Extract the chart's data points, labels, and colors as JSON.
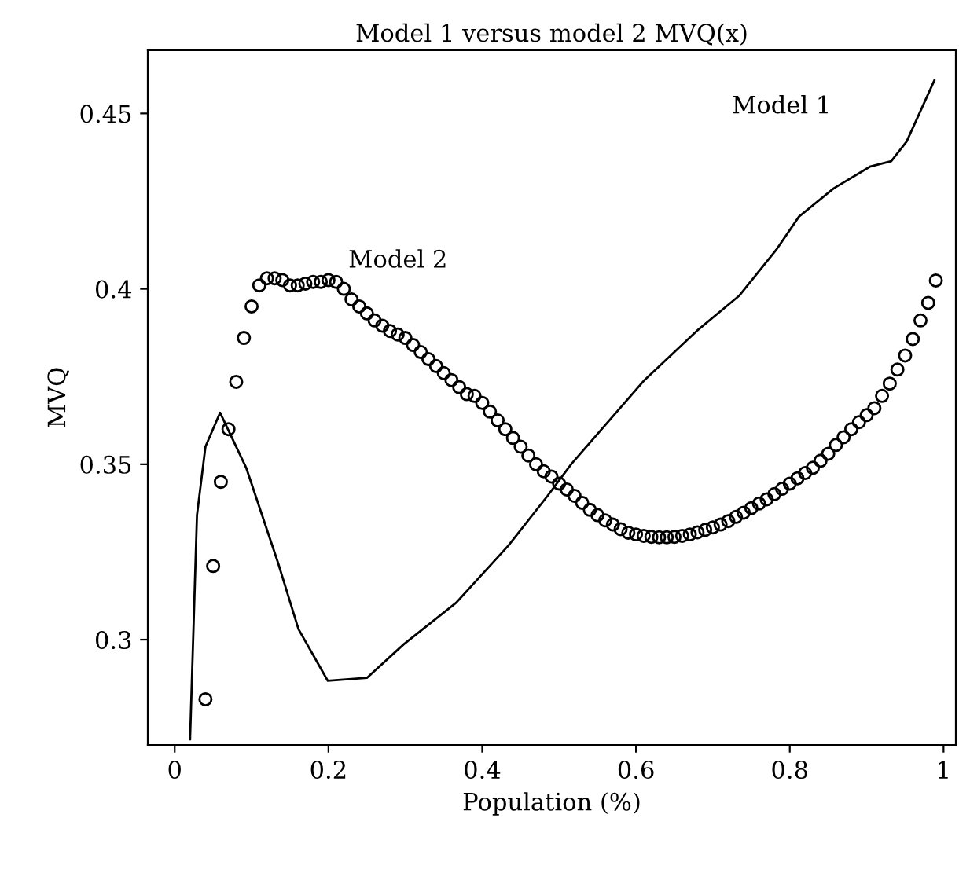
{
  "chart_data": {
    "type": "line",
    "title": "Model 1 versus model 2 MVQ(x)",
    "xlabel": "Population (%)",
    "ylabel": "MVQ",
    "xlim": [
      -0.035,
      1.016
    ],
    "ylim": [
      0.27,
      0.468
    ],
    "xticks": [
      0,
      {
        "value": 0.2,
        "label": "0.2"
      },
      {
        "value": 0.4,
        "label": "0.4"
      },
      {
        "value": 0.6,
        "label": "0.6"
      },
      {
        "value": 0.8,
        "label": "0.8"
      },
      1
    ],
    "yticks": [
      {
        "value": 0.3,
        "label": "0.3"
      },
      0.35,
      {
        "value": 0.4,
        "label": "0.4"
      },
      0.45
    ],
    "grid": false,
    "legend": false,
    "series": [
      {
        "name": "Model 1",
        "color": "#000000",
        "marker": "none",
        "line_style": "solid",
        "x": [
          0.02,
          0.029,
          0.04,
          0.059,
          0.093,
          0.134,
          0.161,
          0.199,
          0.25,
          0.298,
          0.366,
          0.434,
          0.485,
          0.516,
          0.611,
          0.679,
          0.734,
          0.782,
          0.812,
          0.857,
          0.905,
          0.932,
          0.952,
          0.988
        ],
        "values": [
          0.2716,
          0.3355,
          0.355,
          0.3647,
          0.349,
          0.3222,
          0.303,
          0.2883,
          0.2891,
          0.2987,
          0.3105,
          0.3268,
          0.341,
          0.3501,
          0.374,
          0.388,
          0.398,
          0.411,
          0.4206,
          0.4286,
          0.4349,
          0.4364,
          0.442,
          0.4594
        ]
      },
      {
        "name": "Model 2",
        "type": "scatter",
        "color": "#000000",
        "marker": "circle",
        "x": [
          0.04,
          0.05,
          0.06,
          0.07,
          0.08,
          0.09,
          0.1,
          0.11,
          0.12,
          0.13,
          0.14,
          0.15,
          0.16,
          0.17,
          0.18,
          0.19,
          0.2,
          0.21,
          0.22,
          0.23,
          0.24,
          0.25,
          0.26,
          0.27,
          0.28,
          0.29,
          0.3,
          0.31,
          0.32,
          0.33,
          0.34,
          0.35,
          0.36,
          0.37,
          0.38,
          0.39,
          0.4,
          0.41,
          0.42,
          0.43,
          0.44,
          0.45,
          0.46,
          0.47,
          0.48,
          0.49,
          0.5,
          0.51,
          0.52,
          0.53,
          0.54,
          0.55,
          0.56,
          0.57,
          0.58,
          0.59,
          0.6,
          0.61,
          0.62,
          0.63,
          0.64,
          0.65,
          0.66,
          0.67,
          0.68,
          0.69,
          0.7,
          0.71,
          0.72,
          0.73,
          0.74,
          0.75,
          0.76,
          0.77,
          0.78,
          0.79,
          0.8,
          0.81,
          0.82,
          0.83,
          0.84,
          0.85,
          0.86,
          0.87,
          0.88,
          0.89,
          0.9,
          0.91,
          0.92,
          0.93,
          0.94,
          0.95,
          0.96,
          0.97,
          0.98,
          0.99
        ],
        "values": [
          0.283,
          0.321,
          0.345,
          0.36,
          0.3735,
          0.386,
          0.395,
          0.401,
          0.403,
          0.403,
          0.4025,
          0.401,
          0.401,
          0.4015,
          0.402,
          0.402,
          0.4025,
          0.402,
          0.4,
          0.397,
          0.395,
          0.393,
          0.391,
          0.3895,
          0.388,
          0.387,
          0.386,
          0.384,
          0.382,
          0.38,
          0.378,
          0.376,
          0.374,
          0.372,
          0.37,
          0.3695,
          0.3675,
          0.365,
          0.3625,
          0.36,
          0.3575,
          0.355,
          0.3525,
          0.35,
          0.348,
          0.3465,
          0.3445,
          0.3428,
          0.341,
          0.339,
          0.337,
          0.3355,
          0.334,
          0.3328,
          0.3315,
          0.3305,
          0.33,
          0.3296,
          0.3293,
          0.3292,
          0.3292,
          0.3293,
          0.3296,
          0.33,
          0.3306,
          0.3313,
          0.332,
          0.3328,
          0.3338,
          0.335,
          0.3362,
          0.3375,
          0.3388,
          0.34,
          0.3415,
          0.343,
          0.3445,
          0.346,
          0.3475,
          0.349,
          0.351,
          0.353,
          0.3555,
          0.3577,
          0.36,
          0.362,
          0.364,
          0.366,
          0.3695,
          0.373,
          0.377,
          0.381,
          0.3857,
          0.391,
          0.396,
          0.4024
        ]
      }
    ]
  }
}
